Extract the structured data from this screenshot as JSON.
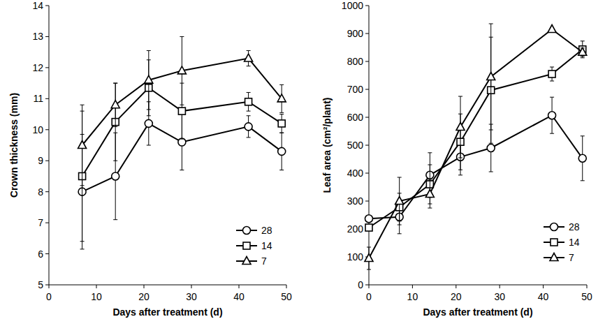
{
  "chart_data": [
    {
      "type": "line",
      "x_label": "Days after treatment (d)",
      "y_label": "Crown thickness (mm)",
      "x": [
        7,
        14,
        21,
        28,
        42,
        49
      ],
      "xlim": [
        0,
        50
      ],
      "xticks": [
        0,
        10,
        20,
        30,
        40,
        50
      ],
      "ylim": [
        5,
        14
      ],
      "yticks": [
        5,
        6,
        7,
        8,
        9,
        10,
        11,
        12,
        13,
        14
      ],
      "grid": false,
      "legend": "lower right",
      "series": [
        {
          "name": "28",
          "color": "#000000",
          "marker": "circle",
          "line_style": "solid",
          "values": [
            8.0,
            8.5,
            10.2,
            9.6,
            10.1,
            9.3
          ],
          "errors": [
            1.85,
            1.4,
            0.7,
            0.9,
            0.35,
            0.6
          ]
        },
        {
          "name": "14",
          "color": "#000000",
          "marker": "square",
          "line_style": "solid",
          "values": [
            8.5,
            10.25,
            11.35,
            10.6,
            10.9,
            10.2
          ],
          "errors": [
            2.1,
            1.25,
            0.9,
            0.9,
            0.3,
            0.3
          ]
        },
        {
          "name": "7",
          "color": "#000000",
          "marker": "triangle",
          "line_style": "solid",
          "values": [
            9.5,
            10.8,
            11.6,
            11.9,
            12.3,
            11.0
          ],
          "errors": [
            1.3,
            0.7,
            0.95,
            1.1,
            0.25,
            0.45
          ]
        }
      ]
    },
    {
      "type": "line",
      "x_label": "Days after treatment (d)",
      "y_label": "Leaf area (cm²/plant)",
      "x": [
        0,
        7,
        14,
        21,
        28,
        42,
        49
      ],
      "xlim": [
        0,
        50
      ],
      "xticks": [
        0,
        10,
        20,
        30,
        40,
        50
      ],
      "ylim": [
        0,
        1000
      ],
      "yticks": [
        0,
        100,
        200,
        300,
        400,
        500,
        600,
        700,
        800,
        900,
        1000
      ],
      "grid": false,
      "legend": "lower right",
      "series": [
        {
          "name": "28",
          "color": "#000000",
          "marker": "circle",
          "line_style": "solid",
          "values": [
            237,
            243,
            393,
            458,
            490,
            607,
            453
          ],
          "errors": [
            0,
            60,
            80,
            65,
            85,
            65,
            80
          ]
        },
        {
          "name": "14",
          "color": "#000000",
          "marker": "square",
          "line_style": "solid",
          "values": [
            205,
            278,
            360,
            512,
            697,
            755,
            843
          ],
          "errors": [
            0,
            50,
            70,
            100,
            190,
            25,
            30
          ]
        },
        {
          "name": "7",
          "color": "#000000",
          "marker": "triangle",
          "line_style": "solid",
          "values": [
            95,
            300,
            325,
            565,
            745,
            915,
            833
          ],
          "errors": [
            40,
            85,
            50,
            110,
            190,
            0,
            15
          ]
        }
      ]
    }
  ]
}
